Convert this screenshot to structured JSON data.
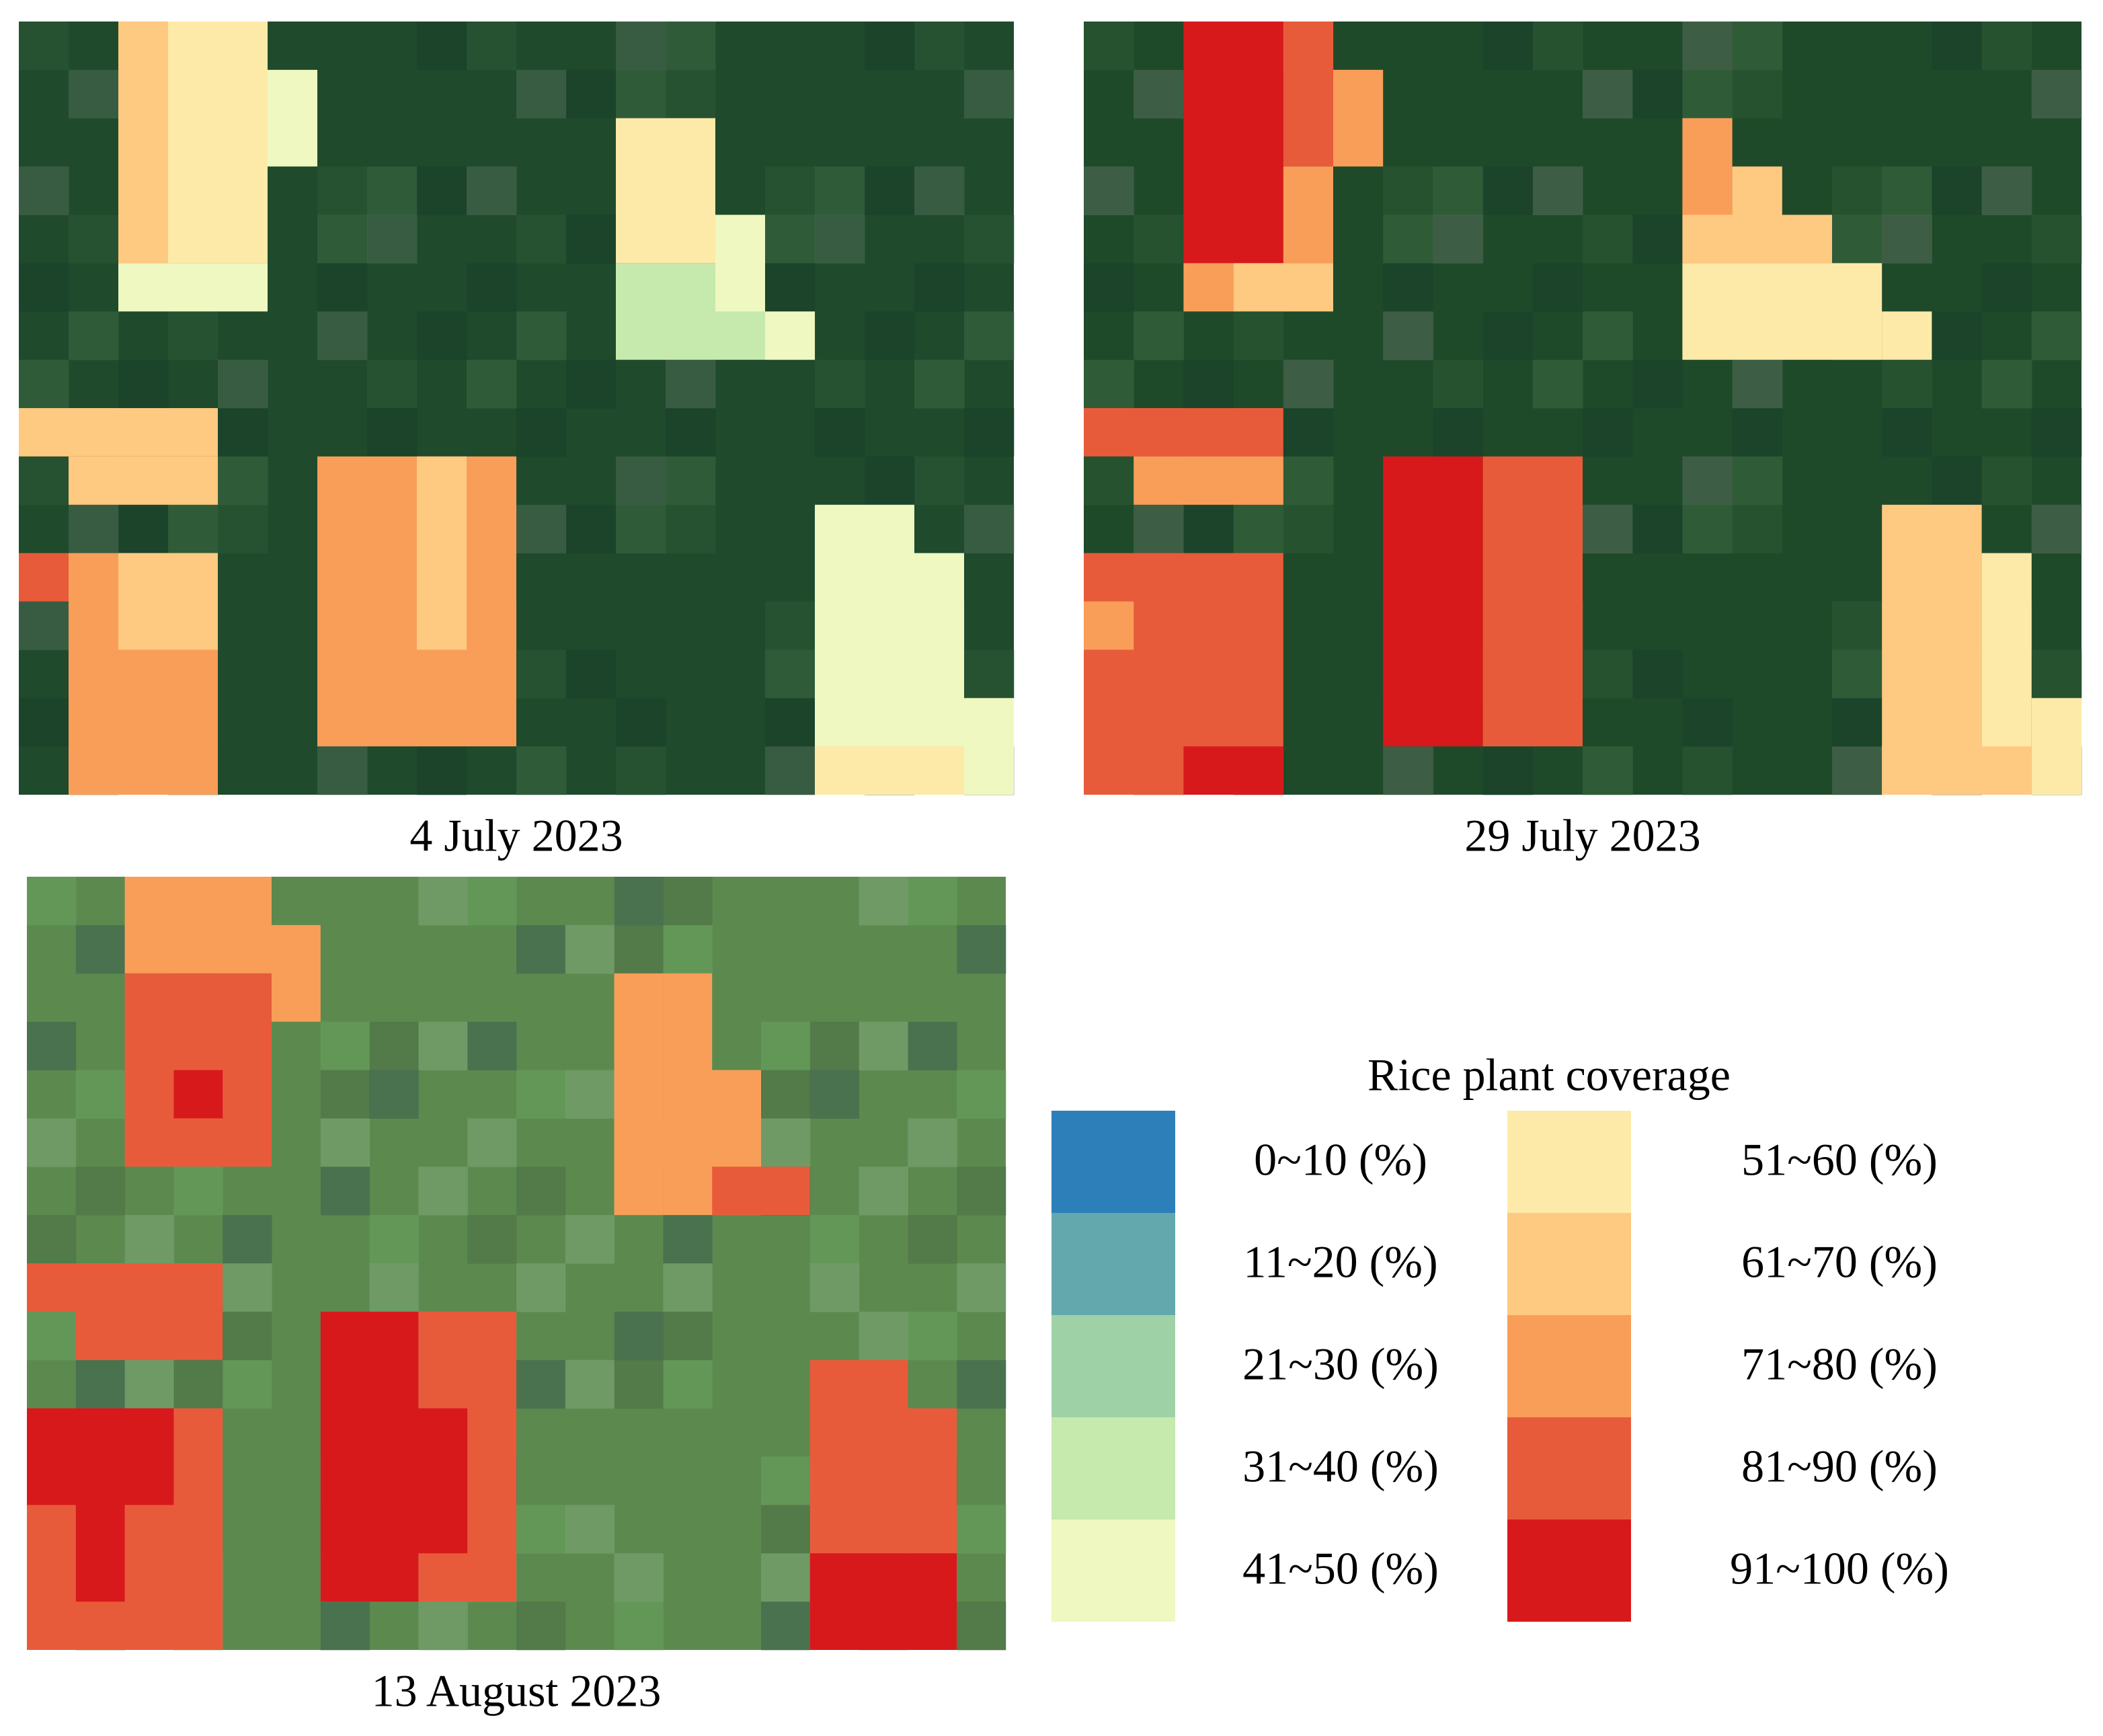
{
  "panels": [
    {
      "caption": "4 July 2023"
    },
    {
      "caption": "29 July 2023"
    },
    {
      "caption": "13 August 2023"
    }
  ],
  "legend": {
    "title": "Rice plant coverage",
    "items": [
      {
        "label": "0~10 (%)",
        "color": "#2c7fb8"
      },
      {
        "label": "11~20 (%)",
        "color": "#63a8ad"
      },
      {
        "label": "21~30 (%)",
        "color": "#9ed2a6"
      },
      {
        "label": "31~40 (%)",
        "color": "#c6e9ad"
      },
      {
        "label": "41~50 (%)",
        "color": "#eef8c0"
      },
      {
        "label": "51~60 (%)",
        "color": "#fdeaa8"
      },
      {
        "label": "61~70 (%)",
        "color": "#fec980"
      },
      {
        "label": "71~80 (%)",
        "color": "#f99e59"
      },
      {
        "label": "81~90 (%)",
        "color": "#e85b3a"
      },
      {
        "label": "91~100 (%)",
        "color": "#d7191c"
      }
    ]
  }
}
